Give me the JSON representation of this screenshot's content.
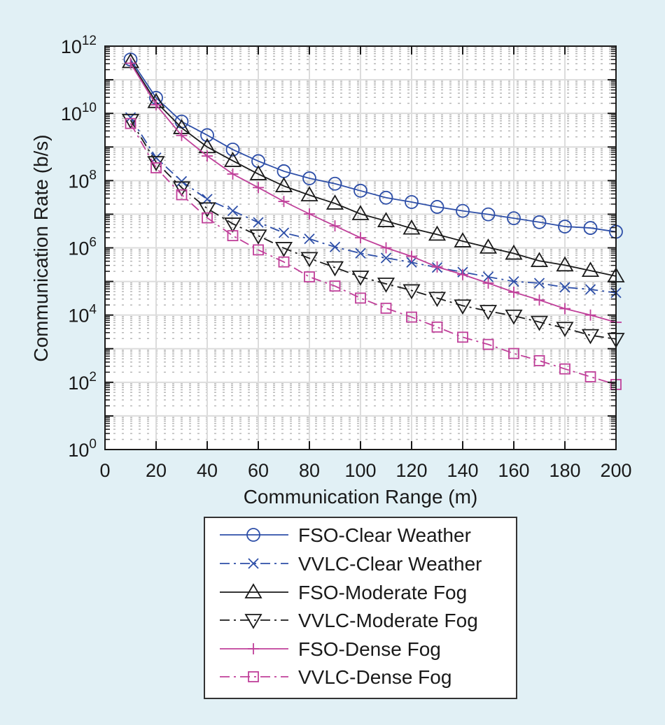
{
  "chart_data": {
    "type": "line",
    "title": "",
    "xlabel": "Communication Range (m)",
    "ylabel": "Communication Rate (b/s)",
    "xlim": [
      0,
      200
    ],
    "ylim": [
      1,
      1000000000000.0
    ],
    "yscale": "log",
    "grid": true,
    "x_ticks": [
      "0",
      "20",
      "40",
      "60",
      "80",
      "100",
      "120",
      "140",
      "160",
      "180",
      "200"
    ],
    "y_ticks": [
      {
        "base": "10",
        "exp": "0"
      },
      {
        "base": "10",
        "exp": "2"
      },
      {
        "base": "10",
        "exp": "4"
      },
      {
        "base": "10",
        "exp": "6"
      },
      {
        "base": "10",
        "exp": "8"
      },
      {
        "base": "10",
        "exp": "10"
      },
      {
        "base": "10",
        "exp": "12"
      }
    ],
    "legend_position": "below",
    "x": [
      10,
      20,
      30,
      40,
      50,
      60,
      70,
      80,
      90,
      100,
      110,
      120,
      130,
      140,
      150,
      160,
      170,
      180,
      190,
      200
    ],
    "series": [
      {
        "name": "FSO-Clear Weather",
        "color": "#2e4fa8",
        "line": "solid",
        "marker": "circle",
        "values": [
          400000000000.0,
          29000000000.0,
          5700000000.0,
          2250000000.0,
          840000000.0,
          380000000.0,
          190000000.0,
          117000000.0,
          81000000.0,
          50000000.0,
          31000000.0,
          23000000.0,
          16500000.0,
          12600000.0,
          9900000.0,
          7600000.0,
          5800000.0,
          4300000.0,
          3900000.0,
          3000000.0
        ]
      },
      {
        "name": "VVLC-Clear Weather",
        "color": "#2e4fa8",
        "line": "dashdot",
        "marker": "x",
        "values": [
          7500000000.0,
          480000000.0,
          95000000.0,
          28000000.0,
          12600000.0,
          5700000.0,
          2800000.0,
          1850000.0,
          1060000.0,
          690000.0,
          500000.0,
          370000.0,
          260000.0,
          190000.0,
          137000.0,
          100000.0,
          89000.0,
          67000.0,
          58000.0,
          46000.0
        ]
      },
      {
        "name": "FSO-Moderate Fog",
        "color": "#1a1a1a",
        "line": "solid",
        "marker": "triangle-up",
        "values": [
          340000000000.0,
          22000000000.0,
          3700000000.0,
          1000000000.0,
          390000000.0,
          157000000.0,
          69000000.0,
          37000000.0,
          21000000.0,
          10200000.0,
          6300000.0,
          3800000.0,
          2500000.0,
          1580000.0,
          1030000.0,
          680000.0,
          410000.0,
          305000.0,
          210000.0,
          144000.0
        ]
      },
      {
        "name": "VVLC-Moderate Fog",
        "color": "#1a1a1a",
        "line": "dashdot",
        "marker": "triangle-down",
        "values": [
          6300000000.0,
          350000000.0,
          62000000.0,
          14800000.0,
          5200000.0,
          2300000.0,
          980000.0,
          490000.0,
          260000.0,
          137000.0,
          85000.0,
          54000.0,
          32000.0,
          19000.0,
          13100.0,
          9500.0,
          6200.0,
          4100.0,
          2500.0,
          1930.0
        ]
      },
      {
        "name": "FSO-Dense Fog",
        "color": "#c0409a",
        "line": "solid",
        "marker": "plus",
        "values": [
          310000000000.0,
          18000000000.0,
          2200000000.0,
          540000000.0,
          157000000.0,
          62000000.0,
          24000000.0,
          10200000.0,
          4500000.0,
          2000000.0,
          1000000.0,
          560000.0,
          270000.0,
          160000.0,
          89000.0,
          48000.0,
          28000.0,
          15500.0,
          10000.0,
          6100.0
        ]
      },
      {
        "name": "VVLC-Dense Fog",
        "color": "#c0409a",
        "line": "dashdot",
        "marker": "square",
        "values": [
          5000000000.0,
          240000000.0,
          38000000.0,
          7800000.0,
          2300000.0,
          870000.0,
          380000.0,
          137000.0,
          73000.0,
          32000.0,
          16000.0,
          8700.0,
          4400.0,
          2200.0,
          1340.0,
          720.0,
          440.0,
          250.0,
          146.0,
          86
        ]
      }
    ]
  }
}
